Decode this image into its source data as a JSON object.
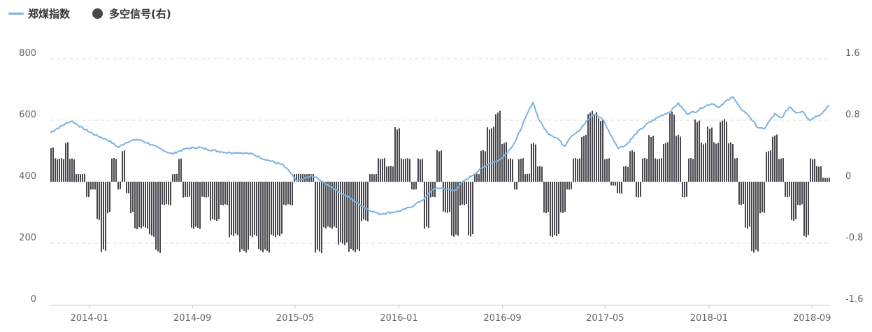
{
  "legend": [
    {
      "label": "郑煤指数",
      "color": "#7ab3e3",
      "kind": "line"
    },
    {
      "label": "多空信号(右)",
      "color": "#47464c",
      "kind": "bar"
    }
  ],
  "chart_data": {
    "type": "line+bar",
    "x_ticks": [
      "2014-01",
      "2014-09",
      "2015-05",
      "2016-01",
      "2016-09",
      "2017-05",
      "2018-01",
      "2018-09"
    ],
    "y_left": {
      "ticks": [
        "800",
        "600",
        "400",
        "200",
        "0"
      ],
      "range": [
        0,
        800
      ]
    },
    "y_right": {
      "ticks": [
        "1.6",
        "0.8",
        "0",
        "-0.8",
        "-1.6"
      ],
      "range": [
        -1.6,
        1.6
      ]
    },
    "x_range": [
      "2013-10-01",
      "2018-10-15"
    ],
    "grid": true,
    "legend_position": "top-left",
    "series": [
      {
        "name": "郑煤指数",
        "axis": "left",
        "type": "line",
        "color": "#7ab3e3",
        "points": [
          [
            "2013-10-01",
            560
          ],
          [
            "2013-11-01",
            585
          ],
          [
            "2013-11-20",
            598
          ],
          [
            "2013-12-15",
            575
          ],
          [
            "2014-01-15",
            552
          ],
          [
            "2014-02-15",
            535
          ],
          [
            "2014-03-10",
            512
          ],
          [
            "2014-04-01",
            530
          ],
          [
            "2014-04-25",
            538
          ],
          [
            "2014-05-20",
            525
          ],
          [
            "2014-06-15",
            508
          ],
          [
            "2014-07-15",
            490
          ],
          [
            "2014-08-01",
            500
          ],
          [
            "2014-08-20",
            508
          ],
          [
            "2014-09-15",
            512
          ],
          [
            "2014-10-20",
            502
          ],
          [
            "2014-11-20",
            495
          ],
          [
            "2014-12-20",
            495
          ],
          [
            "2015-01-20",
            490
          ],
          [
            "2015-02-15",
            475
          ],
          [
            "2015-03-10",
            465
          ],
          [
            "2015-04-01",
            455
          ],
          [
            "2015-04-20",
            430
          ],
          [
            "2015-05-05",
            400
          ],
          [
            "2015-05-20",
            410
          ],
          [
            "2015-06-10",
            418
          ],
          [
            "2015-06-25",
            410
          ],
          [
            "2015-07-08",
            395
          ],
          [
            "2015-07-25",
            385
          ],
          [
            "2015-08-15",
            365
          ],
          [
            "2015-09-10",
            345
          ],
          [
            "2015-10-01",
            325
          ],
          [
            "2015-10-20",
            310
          ],
          [
            "2015-11-15",
            295
          ],
          [
            "2015-12-10",
            300
          ],
          [
            "2016-01-05",
            305
          ],
          [
            "2016-02-01",
            320
          ],
          [
            "2016-03-01",
            345
          ],
          [
            "2016-03-20",
            375
          ],
          [
            "2016-04-10",
            380
          ],
          [
            "2016-05-10",
            370
          ],
          [
            "2016-06-01",
            400
          ],
          [
            "2016-07-01",
            430
          ],
          [
            "2016-08-01",
            460
          ],
          [
            "2016-08-25",
            470
          ],
          [
            "2016-09-15",
            500
          ],
          [
            "2016-10-01",
            530
          ],
          [
            "2016-10-20",
            590
          ],
          [
            "2016-11-05",
            640
          ],
          [
            "2016-11-12",
            660
          ],
          [
            "2016-11-25",
            605
          ],
          [
            "2016-12-15",
            560
          ],
          [
            "2017-01-10",
            540
          ],
          [
            "2017-01-25",
            515
          ],
          [
            "2017-02-10",
            550
          ],
          [
            "2017-03-01",
            565
          ],
          [
            "2017-03-20",
            600
          ],
          [
            "2017-04-05",
            620
          ],
          [
            "2017-04-25",
            605
          ],
          [
            "2017-05-15",
            550
          ],
          [
            "2017-06-01",
            510
          ],
          [
            "2017-06-20",
            520
          ],
          [
            "2017-07-15",
            560
          ],
          [
            "2017-08-10",
            590
          ],
          [
            "2017-09-10",
            615
          ],
          [
            "2017-10-01",
            628
          ],
          [
            "2017-10-20",
            655
          ],
          [
            "2017-11-10",
            622
          ],
          [
            "2017-12-01",
            628
          ],
          [
            "2017-12-20",
            645
          ],
          [
            "2018-01-10",
            655
          ],
          [
            "2018-01-25",
            640
          ],
          [
            "2018-02-10",
            662
          ],
          [
            "2018-02-25",
            678
          ],
          [
            "2018-03-15",
            640
          ],
          [
            "2018-04-05",
            615
          ],
          [
            "2018-04-25",
            578
          ],
          [
            "2018-05-10",
            570
          ],
          [
            "2018-05-25",
            600
          ],
          [
            "2018-06-05",
            620
          ],
          [
            "2018-06-20",
            605
          ],
          [
            "2018-07-10",
            645
          ],
          [
            "2018-07-25",
            625
          ],
          [
            "2018-08-10",
            630
          ],
          [
            "2018-08-25",
            600
          ],
          [
            "2018-09-05",
            610
          ],
          [
            "2018-09-25",
            620
          ],
          [
            "2018-10-05",
            640
          ],
          [
            "2018-10-12",
            650
          ]
        ]
      },
      {
        "name": "多空信号(右)",
        "axis": "right",
        "type": "bar",
        "color": "#47464c",
        "segments": [
          [
            "2013-10-01",
            0.45
          ],
          [
            "2013-10-10",
            0.3
          ],
          [
            "2013-11-01",
            0.5
          ],
          [
            "2013-11-10",
            0.3
          ],
          [
            "2013-11-25",
            0.1
          ],
          [
            "2013-12-20",
            -0.2
          ],
          [
            "2014-01-01",
            -0.1
          ],
          [
            "2014-01-15",
            -0.5
          ],
          [
            "2014-01-25",
            -0.9
          ],
          [
            "2014-02-10",
            -0.4
          ],
          [
            "2014-02-20",
            0.3
          ],
          [
            "2014-03-05",
            -0.1
          ],
          [
            "2014-03-15",
            0.4
          ],
          [
            "2014-03-25",
            -0.15
          ],
          [
            "2014-04-05",
            -0.4
          ],
          [
            "2014-04-15",
            -0.6
          ],
          [
            "2014-05-20",
            -0.7
          ],
          [
            "2014-06-05",
            -0.9
          ],
          [
            "2014-06-20",
            -0.3
          ],
          [
            "2014-07-10",
            0.1
          ],
          [
            "2014-07-25",
            0.3
          ],
          [
            "2014-08-05",
            -0.2
          ],
          [
            "2014-08-25",
            -0.6
          ],
          [
            "2014-09-20",
            -0.2
          ],
          [
            "2014-10-10",
            -0.5
          ],
          [
            "2014-11-05",
            -0.3
          ],
          [
            "2014-11-25",
            -0.7
          ],
          [
            "2014-12-20",
            -0.9
          ],
          [
            "2015-01-10",
            -0.7
          ],
          [
            "2015-02-01",
            -0.9
          ],
          [
            "2015-03-01",
            -0.7
          ],
          [
            "2015-04-01",
            -0.3
          ],
          [
            "2015-04-25",
            0.1
          ],
          [
            "2015-05-20",
            0.1
          ],
          [
            "2015-06-15",
            -0.9
          ],
          [
            "2015-07-05",
            -0.6
          ],
          [
            "2015-08-05",
            -0.8
          ],
          [
            "2015-09-01",
            -0.9
          ],
          [
            "2015-10-01",
            -0.5
          ],
          [
            "2015-10-20",
            0.1
          ],
          [
            "2015-11-10",
            0.3
          ],
          [
            "2015-12-01",
            0.2
          ],
          [
            "2015-12-20",
            0.7
          ],
          [
            "2016-01-05",
            0.3
          ],
          [
            "2016-01-25",
            -0.1
          ],
          [
            "2016-02-10",
            0.3
          ],
          [
            "2016-02-25",
            -0.6
          ],
          [
            "2016-03-10",
            -0.2
          ],
          [
            "2016-03-25",
            0.4
          ],
          [
            "2016-04-10",
            -0.4
          ],
          [
            "2016-05-01",
            -0.7
          ],
          [
            "2016-05-20",
            -0.3
          ],
          [
            "2016-06-10",
            -0.7
          ],
          [
            "2016-06-25",
            0.1
          ],
          [
            "2016-07-10",
            0.4
          ],
          [
            "2016-07-25",
            0.7
          ],
          [
            "2016-08-10",
            0.9
          ],
          [
            "2016-08-25",
            0.5
          ],
          [
            "2016-09-10",
            0.3
          ],
          [
            "2016-09-25",
            -0.1
          ],
          [
            "2016-10-05",
            0.3
          ],
          [
            "2016-10-20",
            0.1
          ],
          [
            "2016-11-05",
            0.5
          ],
          [
            "2016-11-20",
            0.2
          ],
          [
            "2016-12-05",
            -0.4
          ],
          [
            "2016-12-20",
            -0.7
          ],
          [
            "2017-01-10",
            -0.4
          ],
          [
            "2017-01-25",
            -0.1
          ],
          [
            "2017-02-10",
            0.3
          ],
          [
            "2017-03-01",
            0.6
          ],
          [
            "2017-03-20",
            0.9
          ],
          [
            "2017-04-10",
            0.8
          ],
          [
            "2017-04-25",
            0.3
          ],
          [
            "2017-05-10",
            -0.05
          ],
          [
            "2017-05-25",
            -0.15
          ],
          [
            "2017-06-10",
            0.2
          ],
          [
            "2017-06-25",
            0.4
          ],
          [
            "2017-07-10",
            -0.2
          ],
          [
            "2017-07-25",
            0.3
          ],
          [
            "2017-08-10",
            0.6
          ],
          [
            "2017-08-25",
            0.3
          ],
          [
            "2017-09-10",
            0.5
          ],
          [
            "2017-09-25",
            0.9
          ],
          [
            "2017-10-10",
            0.6
          ],
          [
            "2017-10-25",
            -0.2
          ],
          [
            "2017-11-10",
            0.3
          ],
          [
            "2017-11-25",
            0.8
          ],
          [
            "2017-12-10",
            0.5
          ],
          [
            "2017-12-25",
            0.7
          ],
          [
            "2018-01-10",
            0.5
          ],
          [
            "2018-01-25",
            0.8
          ],
          [
            "2018-02-10",
            0.5
          ],
          [
            "2018-02-25",
            0.3
          ],
          [
            "2018-03-10",
            -0.3
          ],
          [
            "2018-03-25",
            -0.6
          ],
          [
            "2018-04-10",
            -0.9
          ],
          [
            "2018-04-25",
            -0.4
          ],
          [
            "2018-05-10",
            0.4
          ],
          [
            "2018-05-25",
            0.6
          ],
          [
            "2018-06-10",
            0.3
          ],
          [
            "2018-06-25",
            -0.2
          ],
          [
            "2018-07-10",
            -0.5
          ],
          [
            "2018-07-25",
            -0.3
          ],
          [
            "2018-08-10",
            -0.7
          ],
          [
            "2018-08-25",
            0.3
          ],
          [
            "2018-09-10",
            0.2
          ],
          [
            "2018-09-25",
            0.05
          ],
          [
            "2018-10-10",
            0.05
          ]
        ]
      }
    ]
  }
}
